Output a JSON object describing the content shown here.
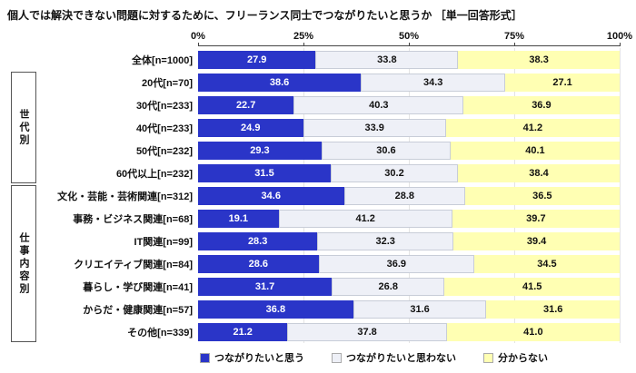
{
  "title": "個人では解決できない問題に対するために、フリーランス同士でつながりたいと思うか ［単一回答形式］",
  "chart_data": {
    "type": "bar",
    "orientation": "horizontal-stacked",
    "x_axis": {
      "range": [
        0,
        100
      ],
      "ticks": [
        "0%",
        "25%",
        "50%",
        "75%",
        "100%"
      ]
    },
    "legend": [
      "つながりたいと思う",
      "つながりたいと思わない",
      "分からない"
    ],
    "colors": [
      "#2a35c8",
      "#eef0f7",
      "#ffffb3"
    ],
    "text_colors": [
      "#ffffff",
      "#111111",
      "#111111"
    ],
    "groups": [
      {
        "name": "",
        "rows": [
          {
            "label": "全体[n=1000]",
            "values": [
              27.9,
              33.8,
              38.3
            ]
          }
        ]
      },
      {
        "name": "世代別",
        "rows": [
          {
            "label": "20代[n=70]",
            "values": [
              38.6,
              34.3,
              27.1
            ]
          },
          {
            "label": "30代[n=233]",
            "values": [
              22.7,
              40.3,
              36.9
            ]
          },
          {
            "label": "40代[n=233]",
            "values": [
              24.9,
              33.9,
              41.2
            ]
          },
          {
            "label": "50代[n=232]",
            "values": [
              29.3,
              30.6,
              40.1
            ]
          },
          {
            "label": "60代以上[n=232]",
            "values": [
              31.5,
              30.2,
              38.4
            ]
          }
        ]
      },
      {
        "name": "仕事内容別",
        "rows": [
          {
            "label": "文化・芸能・芸術関連[n=312]",
            "values": [
              34.6,
              28.8,
              36.5
            ]
          },
          {
            "label": "事務・ビジネス関連[n=68]",
            "values": [
              19.1,
              41.2,
              39.7
            ]
          },
          {
            "label": "IT関連[n=99]",
            "values": [
              28.3,
              32.3,
              39.4
            ]
          },
          {
            "label": "クリエイティブ関連[n=84]",
            "values": [
              28.6,
              36.9,
              34.5
            ]
          },
          {
            "label": "暮らし・学び関連[n=41]",
            "values": [
              31.7,
              26.8,
              41.5
            ]
          },
          {
            "label": "からだ・健康関連[n=57]",
            "values": [
              36.8,
              31.6,
              31.6
            ]
          },
          {
            "label": "その他[n=339]",
            "values": [
              21.2,
              37.8,
              41.0
            ]
          }
        ]
      }
    ]
  }
}
